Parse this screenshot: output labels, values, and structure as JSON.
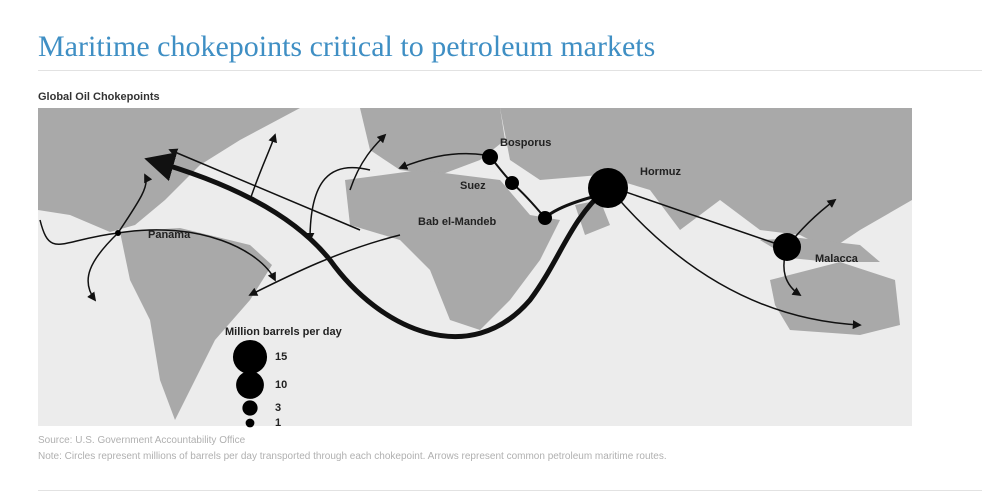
{
  "header": {
    "title": "Maritime chokepoints critical to petroleum markets"
  },
  "map": {
    "subtitle": "Global Oil Chokepoints",
    "chokepoints": [
      {
        "label": "Bosporus"
      },
      {
        "label": "Suez"
      },
      {
        "label": "Hormuz"
      },
      {
        "label": "Bab el-Mandeb"
      },
      {
        "label": "Malacca"
      },
      {
        "label": "Panama"
      }
    ],
    "legend": {
      "title": "Million barrels per day",
      "values": [
        15,
        10,
        3,
        1
      ]
    }
  },
  "footer": {
    "source": "Source: U.S. Government Accountability Office",
    "note": "Note: Circles represent millions of barrels per day transported through each chokepoint. Arrows represent common petroleum maritime routes."
  }
}
